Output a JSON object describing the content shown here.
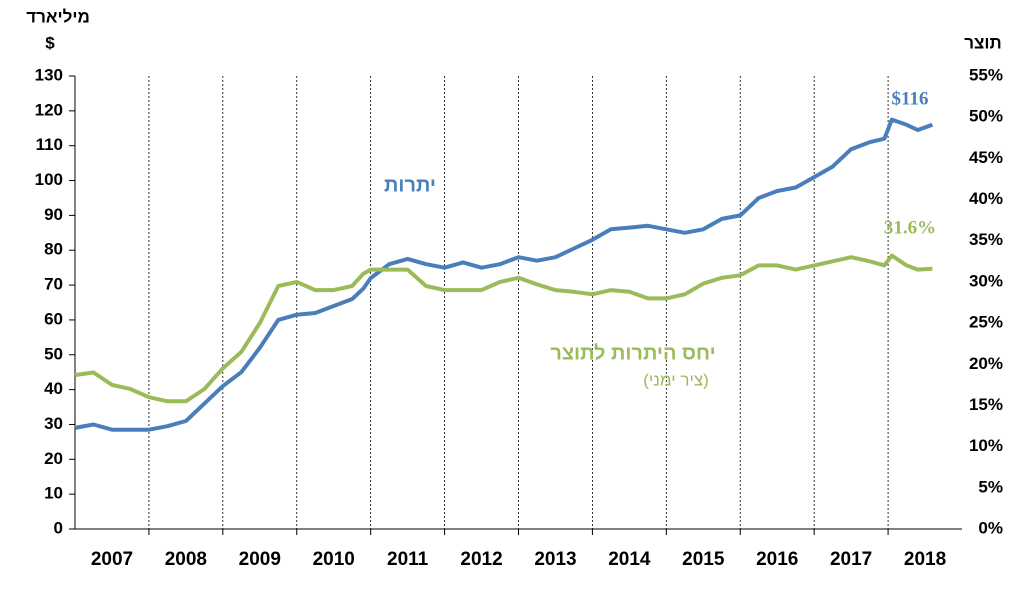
{
  "chart_data": {
    "type": "line",
    "ylabel": [
      "מיליארד",
      "$"
    ],
    "y2label": "תוצר",
    "x": [
      2007,
      2007.25,
      2007.5,
      2007.75,
      2008,
      2008.25,
      2008.5,
      2008.75,
      2009,
      2009.25,
      2009.5,
      2009.75,
      2010,
      2010.25,
      2010.5,
      2010.75,
      2010.9,
      2011,
      2011.25,
      2011.5,
      2011.75,
      2012,
      2012.25,
      2012.5,
      2012.75,
      2013,
      2013.25,
      2013.5,
      2013.75,
      2014,
      2014.25,
      2014.5,
      2014.75,
      2015,
      2015.25,
      2015.5,
      2015.75,
      2016,
      2016.25,
      2016.5,
      2016.75,
      2017,
      2017.25,
      2017.5,
      2017.75,
      2017.95,
      2018.05,
      2018.25,
      2018.4,
      2018.6
    ],
    "series": [
      {
        "name": "יתרות",
        "color": "#4a7ebb",
        "axis": "y",
        "values": [
          29,
          30,
          28.5,
          28.5,
          28.5,
          29.5,
          31,
          36,
          41,
          45,
          52,
          60,
          61.5,
          62,
          64,
          66,
          69,
          72,
          76,
          77.5,
          76,
          75,
          76.5,
          75,
          76,
          78,
          77,
          78,
          80.5,
          83,
          86,
          86.5,
          87,
          86,
          85,
          86,
          89,
          90,
          95,
          97,
          98,
          101,
          104,
          109,
          111,
          112,
          117.5,
          116,
          114.5,
          116
        ]
      },
      {
        "name": "יחס היתרות לתוצר",
        "note": "(ציר ימני)",
        "color": "#9bbb59",
        "axis": "y2",
        "values": [
          18.7,
          19,
          17.5,
          17,
          16,
          15.5,
          15.5,
          17,
          19.5,
          21.5,
          25,
          29.5,
          30,
          29,
          29,
          29.5,
          31,
          31.5,
          31.5,
          31.5,
          29.5,
          29,
          29,
          29,
          30,
          30.5,
          29.7,
          29,
          28.8,
          28.5,
          29,
          28.8,
          28,
          28,
          28.5,
          29.8,
          30.5,
          30.8,
          32,
          32,
          31.5,
          32,
          32.5,
          33,
          32.5,
          32,
          33.2,
          32,
          31.5,
          31.6
        ]
      }
    ],
    "annotations": [
      {
        "text": "$116",
        "color": "#4a7ebb"
      },
      {
        "text": "31.6%",
        "color": "#9bbb59"
      }
    ],
    "xlim": [
      2007,
      2019
    ],
    "xticks": [
      {
        "value": 2007.5,
        "label": "2007"
      },
      {
        "value": 2008.5,
        "label": "2008"
      },
      {
        "value": 2009.5,
        "label": "2009"
      },
      {
        "value": 2010.5,
        "label": "2010"
      },
      {
        "value": 2011.5,
        "label": "2011"
      },
      {
        "value": 2012.5,
        "label": "2012"
      },
      {
        "value": 2013.5,
        "label": "2013"
      },
      {
        "value": 2014.5,
        "label": "2014"
      },
      {
        "value": 2015.5,
        "label": "2015"
      },
      {
        "value": 2016.5,
        "label": "2016"
      },
      {
        "value": 2017.5,
        "label": "2017"
      },
      {
        "value": 2018.5,
        "label": "2018"
      }
    ],
    "xgrid": [
      2008,
      2009,
      2010,
      2011,
      2012,
      2013,
      2014,
      2015,
      2016,
      2017,
      2018
    ],
    "ylim": [
      0,
      130
    ],
    "yticks": [
      0,
      10,
      20,
      30,
      40,
      50,
      60,
      70,
      80,
      90,
      100,
      110,
      120,
      130
    ],
    "y2lim": [
      0,
      55
    ],
    "y2ticks": [
      {
        "value": 0,
        "label": "0%"
      },
      {
        "value": 5,
        "label": "5%"
      },
      {
        "value": 10,
        "label": "10%"
      },
      {
        "value": 15,
        "label": "15%"
      },
      {
        "value": 20,
        "label": "20%"
      },
      {
        "value": 25,
        "label": "25%"
      },
      {
        "value": 30,
        "label": "30%"
      },
      {
        "value": 35,
        "label": "35%"
      },
      {
        "value": 40,
        "label": "40%"
      },
      {
        "value": 45,
        "label": "45%"
      },
      {
        "value": 50,
        "label": "50%"
      },
      {
        "value": 55,
        "label": "55%"
      }
    ]
  }
}
